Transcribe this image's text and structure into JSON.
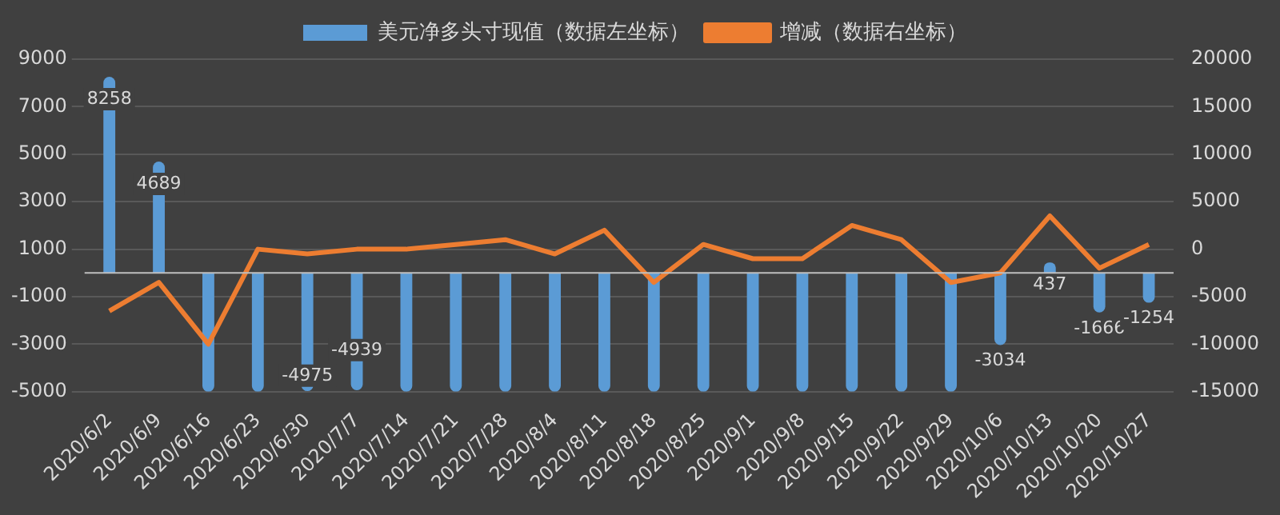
{
  "chart_data": {
    "type": "bar",
    "categories": [
      "2020/6/2",
      "2020/6/9",
      "2020/6/16",
      "2020/6/23",
      "2020/6/30",
      "2020/7/7",
      "2020/7/14",
      "2020/7/21",
      "2020/7/28",
      "2020/8/4",
      "2020/8/11",
      "2020/8/18",
      "2020/8/25",
      "2020/9/1",
      "2020/9/8",
      "2020/9/15",
      "2020/9/22",
      "2020/9/29",
      "2020/10/6",
      "2020/10/13",
      "2020/10/20",
      "2020/10/27"
    ],
    "series": [
      {
        "name": "美元净多头寸现值（数据左坐标）",
        "color": "#5b9bd5",
        "values": [
          8258,
          4689,
          -5000,
          -5000,
          -4975,
          -4939,
          -5000,
          -5000,
          -5000,
          -5000,
          -5000,
          -5000,
          -5000,
          -5000,
          -5000,
          -5000,
          -5000,
          -5000,
          -3034,
          437,
          -1666,
          -1254
        ],
        "value_labels": [
          "8258",
          "4689",
          null,
          null,
          "-4975",
          "-4939",
          null,
          null,
          null,
          null,
          null,
          null,
          null,
          null,
          null,
          null,
          null,
          null,
          "-3034",
          "437",
          "-1666",
          "-1254"
        ]
      },
      {
        "name": "增减（数据右坐标）",
        "type": "line",
        "axis": "y2",
        "color": "#ed7d31",
        "values": [
          -6500,
          -3500,
          -10000,
          0,
          -500,
          0,
          0,
          500,
          1000,
          -500,
          2000,
          -3500,
          500,
          -1000,
          -1000,
          2500,
          1000,
          -3500,
          -2500,
          3500,
          -2000,
          500
        ]
      }
    ],
    "ylim": [
      -5000,
      9000
    ],
    "yticks": [
      -5000,
      -3000,
      -1000,
      1000,
      3000,
      5000,
      7000,
      9000
    ],
    "y2lim": [
      -15000,
      20000
    ],
    "y2ticks": [
      -15000,
      -10000,
      -5000,
      0,
      5000,
      10000,
      15000,
      20000
    ],
    "grid": "y",
    "legend": "top",
    "marker": "none",
    "line_style": "solid"
  }
}
